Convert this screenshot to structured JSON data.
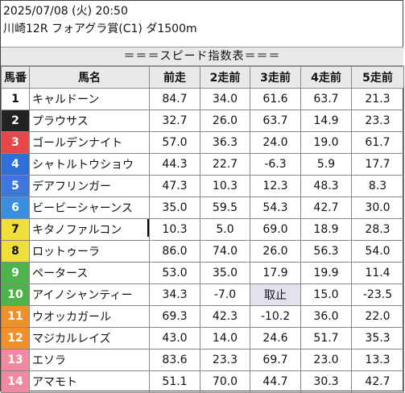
{
  "header": {
    "datetime": "2025/07/08 (火) 20:50",
    "race": "川崎12R フォアグラ賞(C1) ダ1500m"
  },
  "table_title": "＝＝＝スピード指数表＝＝＝",
  "columns": [
    "馬番",
    "馬名",
    "前走",
    "2走前",
    "3走前",
    "4走前",
    "5走前"
  ],
  "colors": {
    "1": "#ffffff",
    "2": "#222222",
    "3": "#e8474a",
    "4": "#2e6fd8",
    "5": "#f0de3a",
    "green": "#4db34a",
    "orange": "#f0902a",
    "pink": "#f08aa0"
  },
  "rows": [
    {
      "no": "1",
      "name": "キャルドーン",
      "v": [
        "84.7",
        "34.0",
        "61.6",
        "63.7",
        "21.3"
      ]
    },
    {
      "no": "2",
      "name": "プラウサス",
      "v": [
        "32.7",
        "26.0",
        "63.7",
        "14.9",
        "23.3"
      ]
    },
    {
      "no": "3",
      "name": "ゴールデンナイト",
      "v": [
        "57.0",
        "36.3",
        "24.0",
        "19.0",
        "61.7"
      ]
    },
    {
      "no": "4",
      "name": "シャトルトウショウ",
      "v": [
        "44.3",
        "22.7",
        "-6.3",
        "5.9",
        "17.7"
      ]
    },
    {
      "no": "5",
      "name": "デアフリンガー",
      "v": [
        "47.3",
        "10.3",
        "12.3",
        "48.3",
        "8.3"
      ]
    },
    {
      "no": "6",
      "name": "ビービーシャーンス",
      "v": [
        "35.0",
        "59.5",
        "54.3",
        "42.7",
        "30.0"
      ]
    },
    {
      "no": "7",
      "name": "キタノファルコン",
      "v": [
        "10.3",
        "5.0",
        "69.0",
        "18.9",
        "28.3"
      ]
    },
    {
      "no": "8",
      "name": "ロットゥーラ",
      "v": [
        "86.0",
        "74.0",
        "26.0",
        "56.3",
        "54.0"
      ]
    },
    {
      "no": "9",
      "name": "ペータース",
      "v": [
        "53.0",
        "35.0",
        "17.9",
        "19.9",
        "11.4"
      ]
    },
    {
      "no": "10",
      "name": "アイノシャンティー",
      "v": [
        "34.3",
        "-7.0",
        "取止",
        "15.0",
        "-23.5"
      ]
    },
    {
      "no": "11",
      "name": "ウオッカガール",
      "v": [
        "69.3",
        "42.3",
        "-10.2",
        "36.0",
        "22.0"
      ]
    },
    {
      "no": "12",
      "name": "マジカルレイズ",
      "v": [
        "43.0",
        "14.0",
        "24.6",
        "51.7",
        "35.3"
      ]
    },
    {
      "no": "13",
      "name": "エソラ",
      "v": [
        "83.6",
        "23.3",
        "69.7",
        "23.0",
        "13.3"
      ]
    },
    {
      "no": "14",
      "name": "アマモト",
      "v": [
        "51.1",
        "70.0",
        "44.7",
        "30.3",
        "42.7"
      ]
    }
  ]
}
